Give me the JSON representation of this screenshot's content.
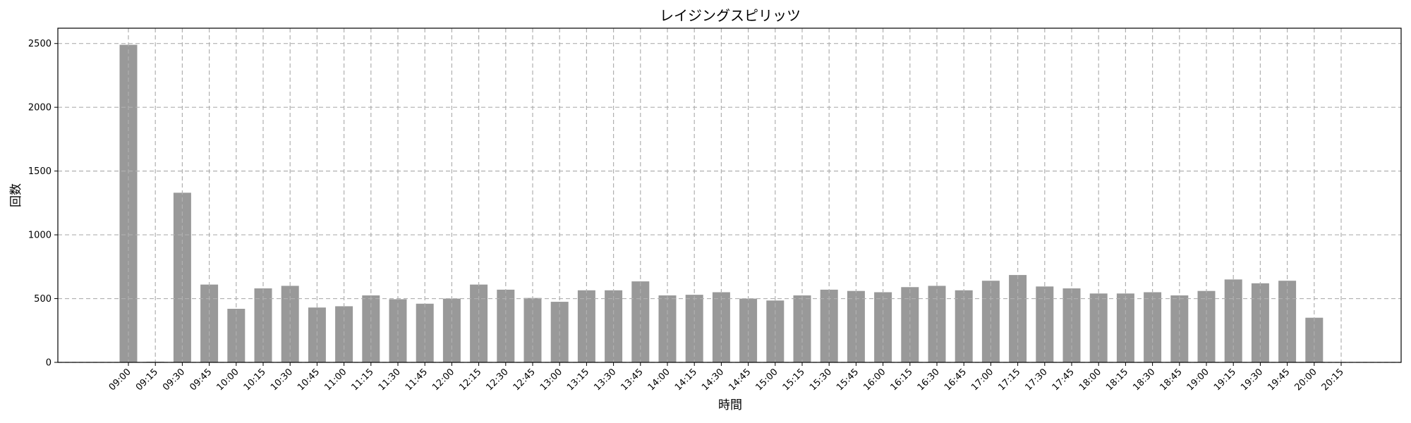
{
  "chart_data": {
    "type": "bar",
    "title": "レイジングスピリッツ",
    "xlabel": "時間",
    "ylabel": "回数",
    "ylim": [
      0,
      2620
    ],
    "yticks": [
      0,
      500,
      1000,
      1500,
      2000,
      2500
    ],
    "grid": true,
    "bar_color": "#999999",
    "categories": [
      "09:00",
      "09:15",
      "09:30",
      "09:45",
      "10:00",
      "10:15",
      "10:30",
      "10:45",
      "11:00",
      "11:15",
      "11:30",
      "11:45",
      "12:00",
      "12:15",
      "12:30",
      "12:45",
      "13:00",
      "13:15",
      "13:30",
      "13:45",
      "14:00",
      "14:15",
      "14:30",
      "14:45",
      "15:00",
      "15:15",
      "15:30",
      "15:45",
      "16:00",
      "16:15",
      "16:30",
      "16:45",
      "17:00",
      "17:15",
      "17:30",
      "17:45",
      "18:00",
      "18:15",
      "18:30",
      "18:45",
      "19:00",
      "19:15",
      "19:30",
      "19:45",
      "20:00",
      "20:15"
    ],
    "values": [
      2490,
      5,
      1330,
      610,
      420,
      580,
      600,
      430,
      440,
      525,
      495,
      460,
      500,
      610,
      570,
      505,
      475,
      565,
      565,
      635,
      525,
      530,
      550,
      500,
      485,
      525,
      570,
      560,
      550,
      590,
      600,
      565,
      640,
      685,
      595,
      580,
      540,
      540,
      550,
      525,
      560,
      650,
      620,
      640,
      350,
      0
    ]
  }
}
